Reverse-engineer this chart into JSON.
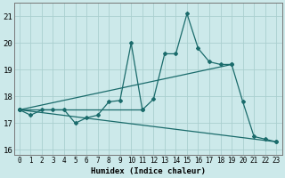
{
  "xlabel": "Humidex (Indice chaleur)",
  "xlim": [
    -0.5,
    23.5
  ],
  "ylim": [
    15.8,
    21.5
  ],
  "yticks": [
    16,
    17,
    18,
    19,
    20,
    21
  ],
  "xticks": [
    0,
    1,
    2,
    3,
    4,
    5,
    6,
    7,
    8,
    9,
    10,
    11,
    12,
    13,
    14,
    15,
    16,
    17,
    18,
    19,
    20,
    21,
    22,
    23
  ],
  "bg_color": "#cce9ea",
  "grid_color": "#aacfcf",
  "line_color": "#1a6b6b",
  "main_line": {
    "x": [
      0,
      1,
      2,
      3,
      4,
      5,
      6,
      7,
      8,
      9,
      10,
      11,
      12,
      13,
      14,
      15,
      16,
      17,
      18,
      19,
      20,
      21,
      22,
      23
    ],
    "y": [
      17.5,
      17.3,
      17.5,
      17.5,
      17.5,
      17.0,
      17.2,
      17.3,
      17.8,
      17.85,
      20.0,
      17.5,
      17.9,
      19.6,
      19.6,
      21.1,
      19.8,
      19.3,
      19.2,
      19.2,
      17.8,
      16.5,
      16.4,
      16.3
    ]
  },
  "straight_lines": [
    {
      "x": [
        0,
        23
      ],
      "y": [
        17.5,
        16.3
      ]
    },
    {
      "x": [
        0,
        19
      ],
      "y": [
        17.5,
        19.2
      ]
    },
    {
      "x": [
        0,
        11
      ],
      "y": [
        17.5,
        17.5
      ]
    }
  ]
}
